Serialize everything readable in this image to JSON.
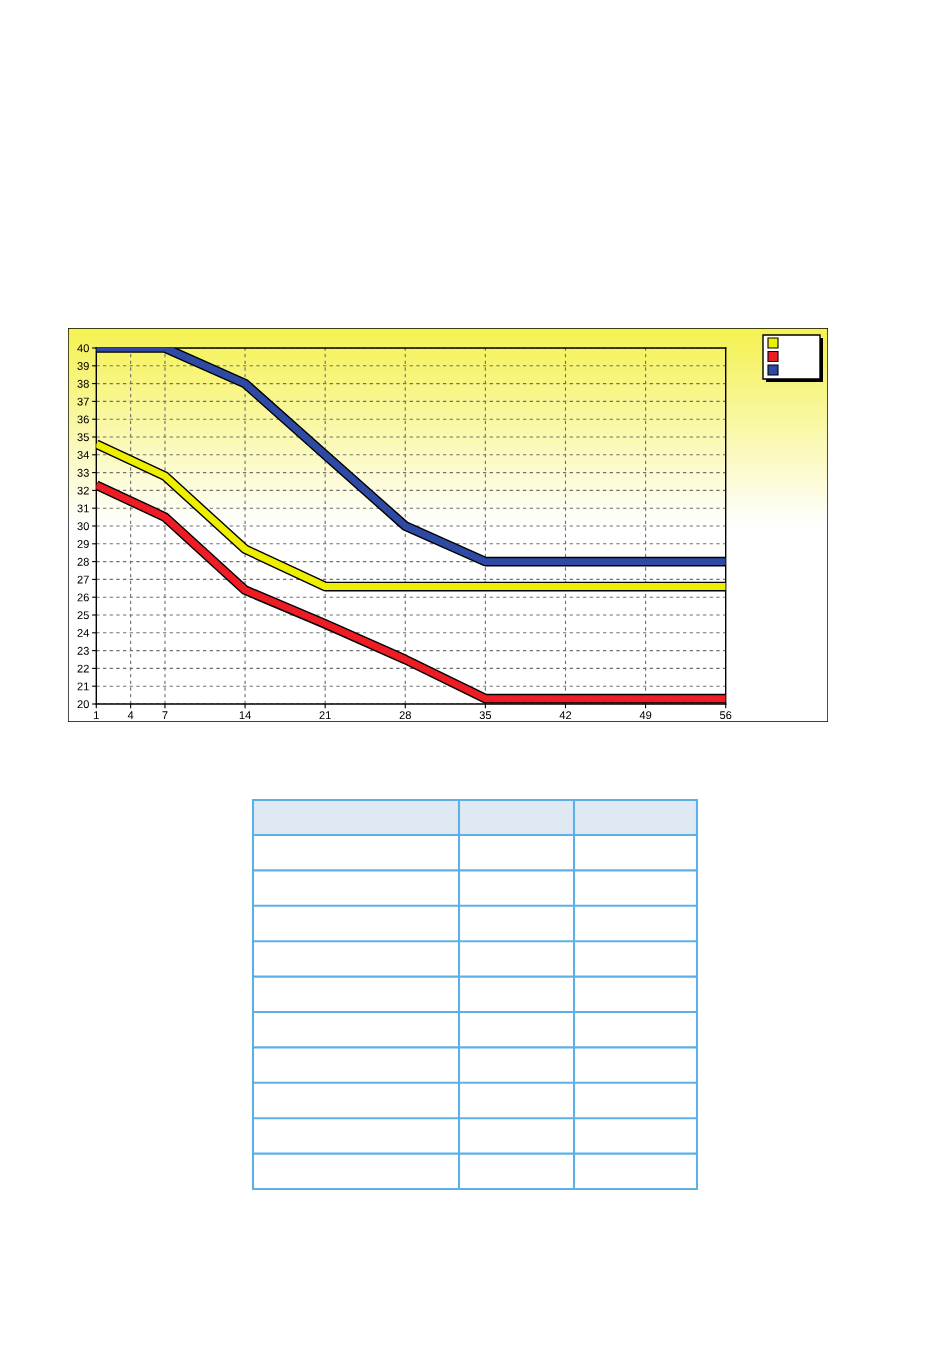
{
  "chart_data": {
    "type": "line",
    "x": [
      1,
      7,
      14,
      21,
      28,
      35,
      42,
      49,
      56
    ],
    "series": [
      {
        "color": "#eeee00",
        "values": [
          34.6,
          32.8,
          28.7,
          26.6,
          26.6,
          26.6,
          26.6,
          26.6,
          26.6
        ]
      },
      {
        "color": "#ee1c24",
        "values": [
          32.3,
          30.5,
          26.4,
          24.5,
          22.5,
          20.3,
          20.3,
          20.3,
          20.3
        ]
      },
      {
        "color": "#2e4aa5",
        "values": [
          40,
          40,
          38,
          34,
          30,
          28,
          28,
          28,
          28
        ]
      }
    ],
    "xlim": [
      1,
      56
    ],
    "ylim": [
      20,
      40
    ],
    "xticks": [
      1,
      4,
      7,
      14,
      21,
      28,
      35,
      42,
      49,
      56
    ],
    "yticks": [
      20,
      21,
      22,
      23,
      24,
      25,
      26,
      27,
      28,
      29,
      30,
      31,
      32,
      33,
      34,
      35,
      36,
      37,
      38,
      39,
      40
    ],
    "grid": true,
    "line_style": "solid"
  }
}
